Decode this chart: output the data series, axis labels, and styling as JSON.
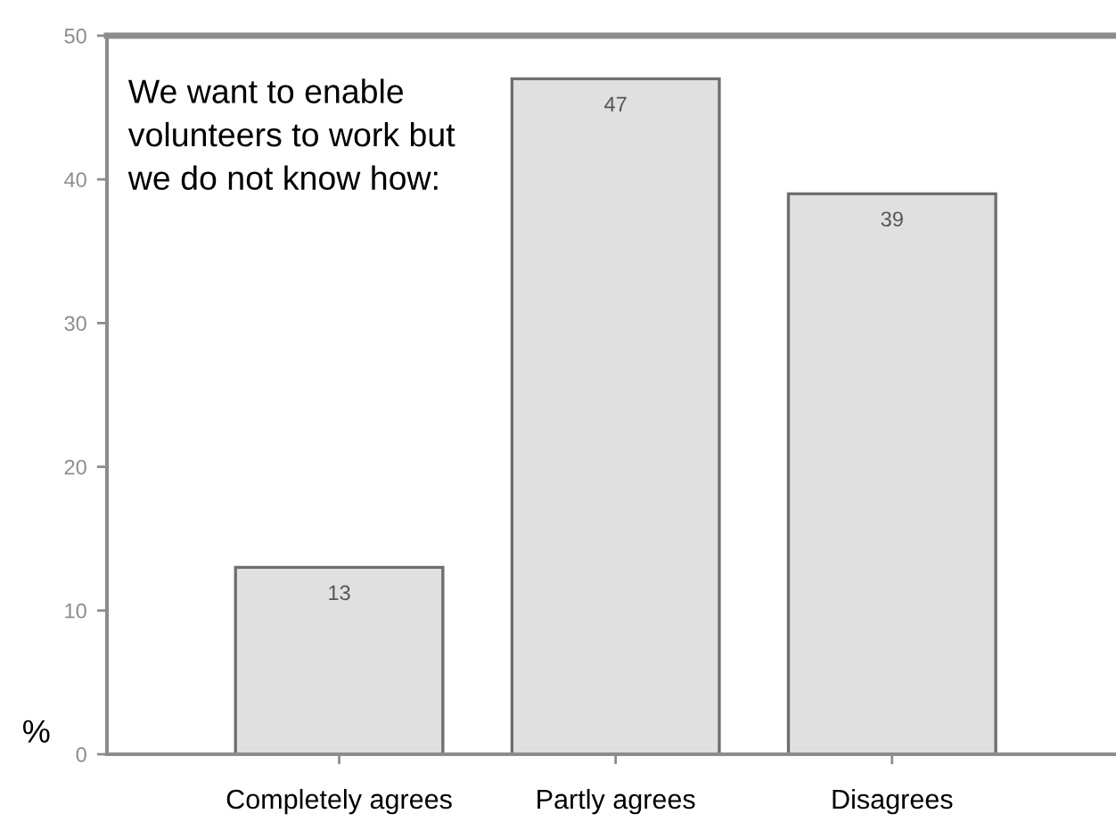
{
  "chart_data": {
    "type": "bar",
    "title": "We want to enable\nvolunteers to work but\nwe do not know how:",
    "ylabel": "%",
    "categories": [
      "Completely agrees",
      "Partly agrees",
      "Disagrees"
    ],
    "values": [
      13,
      47,
      39
    ],
    "color": "#e0e0e0",
    "ylim": [
      0,
      50
    ],
    "yticks": [
      0,
      10,
      20,
      30,
      40,
      50
    ],
    "data_labels": true
  }
}
